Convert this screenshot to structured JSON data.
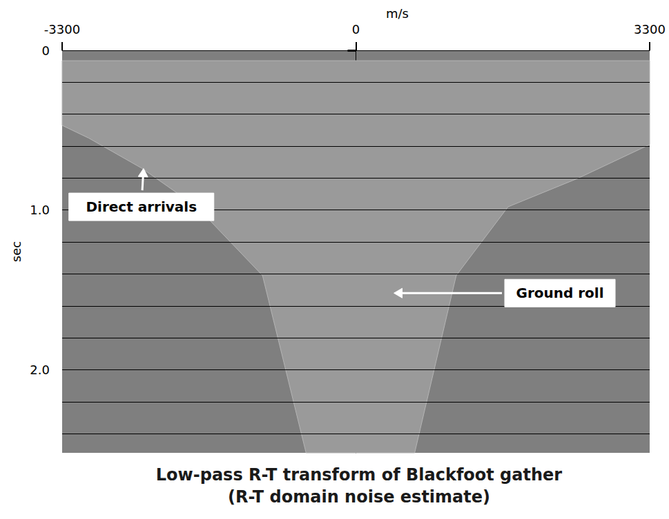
{
  "chart_data": {
    "type": "image",
    "title": "Low-pass R-T transform of Blackfoot gather",
    "subtitle": "(R-T domain noise estimate)",
    "x_label": "m/s",
    "y_label": "sec",
    "xlim": [
      -3300,
      3300
    ],
    "xticks": [
      -3300,
      0,
      3300
    ],
    "ylim": [
      0,
      2.52
    ],
    "yticks": [
      0,
      {
        "value": 1,
        "label": "1.0"
      },
      {
        "value": 2,
        "label": "2.0"
      }
    ],
    "grid": true,
    "gridlines": [
      0.2,
      0.4,
      0.6,
      0.8,
      1.0,
      1.2,
      1.4,
      1.6,
      1.8,
      2.0,
      2.2,
      2.4
    ],
    "color": "#9a9a9a",
    "region": [
      [
        -3300,
        0.065
      ],
      [
        3300,
        0.065
      ],
      [
        3300,
        0.59
      ],
      [
        2500,
        0.8
      ],
      [
        1709,
        0.98
      ],
      [
        1127,
        1.41
      ],
      [
        660,
        2.52
      ],
      [
        -560,
        2.52
      ],
      [
        -1049,
        1.41
      ],
      [
        -1787,
        0.98
      ],
      [
        -2400,
        0.74
      ],
      [
        -3000,
        0.55
      ],
      [
        -3300,
        0.47
      ]
    ],
    "annotations": [
      {
        "text": "Direct arrivals",
        "at": [
          -2410,
          0.98
        ],
        "arrow_to": [
          -2386,
          0.74
        ]
      },
      {
        "text": "Ground roll",
        "at": [
          2292,
          1.52
        ],
        "arrow_to": [
          427,
          1.52
        ]
      }
    ]
  }
}
